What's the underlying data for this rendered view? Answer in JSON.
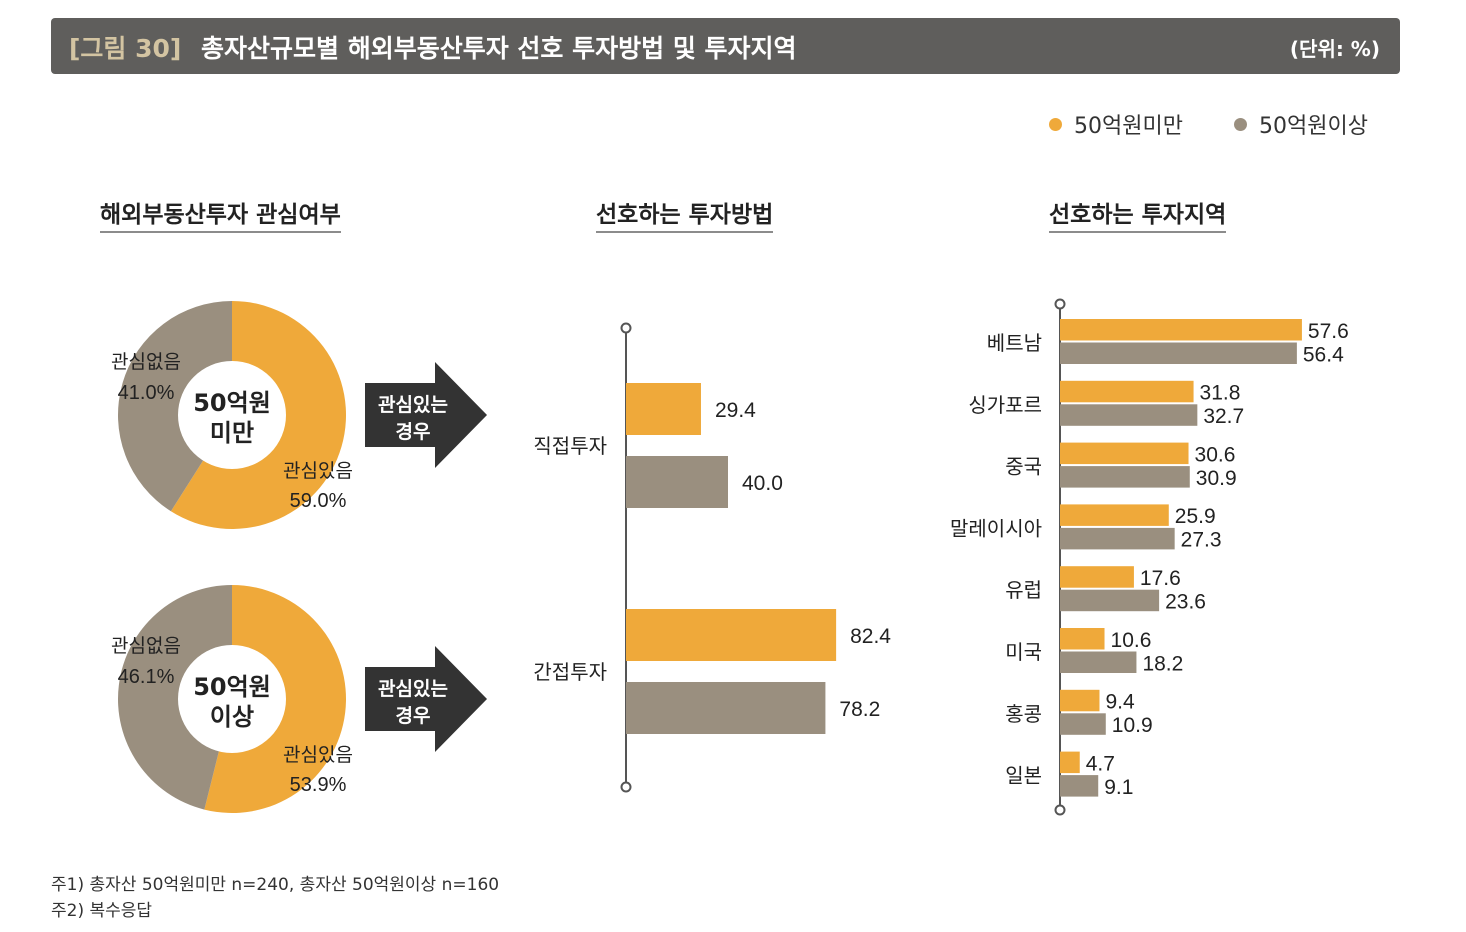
{
  "header": {
    "figure_label": "[그림 30]",
    "title": "총자산규모별 해외부동산투자 선호 투자방법 및 투자지역",
    "unit": "(단위: %)"
  },
  "legend": [
    {
      "label": "50억원미만",
      "color": "#efa93a"
    },
    {
      "label": "50억원이상",
      "color": "#9a8f7f"
    }
  ],
  "colors": {
    "under": "#efa93a",
    "over": "#9a8f7f",
    "arrow": "#333333",
    "axis": "#555555",
    "text": "#222222"
  },
  "sections": {
    "interest": "해외부동산투자 관심여부",
    "method": "선호하는 투자방법",
    "region": "선호하는 투자지역"
  },
  "arrow_label": [
    "관심있는",
    "경우"
  ],
  "chart_data": [
    {
      "type": "pie",
      "title": "50억원 미만",
      "center_label": [
        "50억원",
        "미만"
      ],
      "slices": [
        {
          "label": "관심있음",
          "value": 59.0,
          "display": "59.0%"
        },
        {
          "label": "관심없음",
          "value": 41.0,
          "display": "41.0%"
        }
      ]
    },
    {
      "type": "pie",
      "title": "50억원 이상",
      "center_label": [
        "50억원",
        "이상"
      ],
      "slices": [
        {
          "label": "관심있음",
          "value": 53.9,
          "display": "53.9%"
        },
        {
          "label": "관심없음",
          "value": 46.1,
          "display": "46.1%"
        }
      ]
    },
    {
      "type": "bar",
      "title": "선호하는 투자방법",
      "categories": [
        "직접투자",
        "간접투자"
      ],
      "series": [
        {
          "name": "50억원미만",
          "values": [
            29.4,
            82.4
          ]
        },
        {
          "name": "50억원이상",
          "values": [
            40.0,
            78.2
          ]
        }
      ],
      "xlim": [
        0,
        100
      ]
    },
    {
      "type": "bar",
      "title": "선호하는 투자지역",
      "categories": [
        "베트남",
        "싱가포르",
        "중국",
        "말레이시아",
        "유럽",
        "미국",
        "홍콩",
        "일본"
      ],
      "series": [
        {
          "name": "50억원미만",
          "values": [
            57.6,
            31.8,
            30.6,
            25.9,
            17.6,
            10.6,
            9.4,
            4.7
          ]
        },
        {
          "name": "50억원이상",
          "values": [
            56.4,
            32.7,
            30.9,
            27.3,
            23.6,
            18.2,
            10.9,
            9.1
          ]
        }
      ],
      "xlim": [
        0,
        100
      ]
    }
  ],
  "notes": [
    "주1) 총자산 50억원미만 n=240, 총자산 50억원이상 n=160",
    "주2) 복수응답"
  ]
}
